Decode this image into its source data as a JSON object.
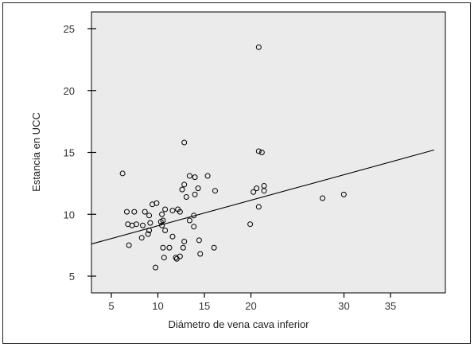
{
  "chart_data": {
    "type": "scatter",
    "title": "",
    "xlabel": "Diámetro de vena cava inferior",
    "ylabel": "Estancia en UCC",
    "xlim": [
      4,
      39
    ],
    "ylim": [
      4.5,
      26
    ],
    "xticks": [
      5,
      10,
      15,
      20,
      30,
      35
    ],
    "xtick_labels": [
      "5",
      "10",
      "15",
      "20",
      "30",
      "35"
    ],
    "yticks": [
      5,
      10,
      15,
      20,
      25
    ],
    "ytick_labels": [
      "5",
      "10",
      "15",
      "20",
      "25"
    ],
    "grid": false,
    "legend": "none",
    "series": [
      {
        "x": [
          20.5,
          13.5,
          20.5,
          20.8,
          7.7,
          14.0,
          14.5,
          15.7,
          13.5,
          13.3,
          21.0,
          14.8,
          16.4,
          20.3,
          20.0,
          21.0,
          26.5,
          28.5,
          13.7,
          14.5,
          20.5,
          8.1,
          8.8,
          10.9,
          10.5,
          11.7,
          12.4,
          12.9,
          13.1,
          11.4,
          9.8,
          10.2,
          14.4,
          8.2,
          8.6,
          9.0,
          9.6,
          10.3,
          11.3,
          11.5,
          14.0,
          11.4,
          10.1,
          10.2,
          9.5,
          11.7,
          12.4,
          14.4,
          8.3,
          11.5,
          12.1,
          13.4,
          14.9,
          16.3,
          13.5,
          12.8,
          11.6,
          12.7,
          13.1,
          19.7,
          15.0,
          10.8
        ],
        "y": [
          23.5,
          15.8,
          15.1,
          15.0,
          13.3,
          13.1,
          13.0,
          13.1,
          12.4,
          12.0,
          12.3,
          12.1,
          11.9,
          12.1,
          11.8,
          11.9,
          11.3,
          11.6,
          11.4,
          11.6,
          10.6,
          10.2,
          10.2,
          10.9,
          10.8,
          10.4,
          10.3,
          10.4,
          10.2,
          10.0,
          10.2,
          9.9,
          9.9,
          9.2,
          9.1,
          9.2,
          9.1,
          9.3,
          9.4,
          9.5,
          9.5,
          9.1,
          8.4,
          8.7,
          8.1,
          8.7,
          8.2,
          9.0,
          7.5,
          7.3,
          7.3,
          7.3,
          7.9,
          7.3,
          7.8,
          6.4,
          6.5,
          6.5,
          6.6,
          9.2,
          6.8,
          5.7
        ]
      }
    ],
    "fit_line": {
      "x": [
        4,
        39
      ],
      "y": [
        7.6,
        15.2
      ]
    }
  }
}
